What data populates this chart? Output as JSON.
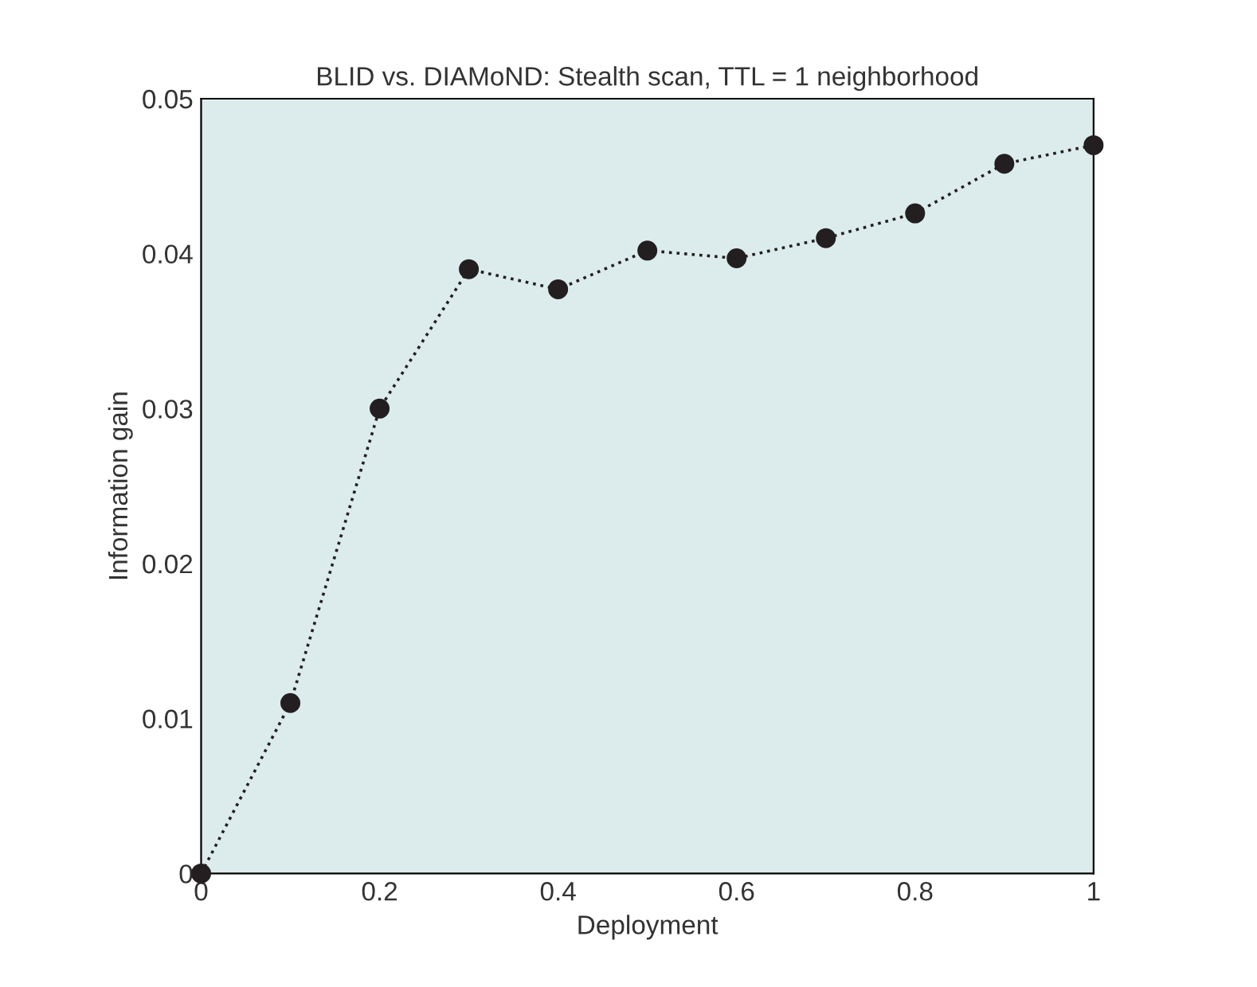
{
  "chart_data": {
    "type": "line",
    "title": "BLID vs. DIAMoND: Stealth scan, TTL = 1 neighborhood",
    "xlabel": "Deployment",
    "ylabel": "Information gain",
    "x": [
      0,
      0.1,
      0.2,
      0.3,
      0.4,
      0.5,
      0.6,
      0.7,
      0.8,
      0.9,
      1.0
    ],
    "series": [
      {
        "color": "#231f20",
        "values": [
          0,
          0.011,
          0.03,
          0.039,
          0.0377,
          0.0402,
          0.0397,
          0.041,
          0.0426,
          0.0458,
          0.047
        ]
      }
    ],
    "xlim": [
      0,
      1
    ],
    "xticks": [
      0,
      0.2,
      0.4,
      0.6,
      0.8,
      1
    ],
    "ylim": [
      0,
      0.05
    ],
    "yticks": [
      0,
      0.01,
      0.02,
      0.03,
      0.04,
      0.05
    ],
    "marker": "circle",
    "line_style": "dotted",
    "grid": false,
    "legend": false
  }
}
